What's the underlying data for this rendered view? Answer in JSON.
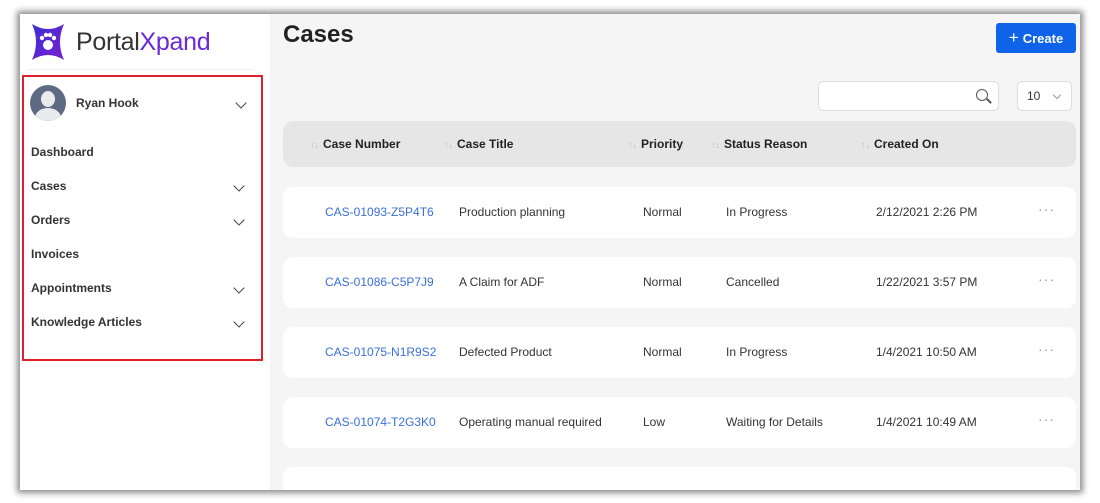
{
  "brand": {
    "name_part1": "Portal",
    "name_part2": "Xpand"
  },
  "user": {
    "name": "Ryan Hook"
  },
  "nav": [
    {
      "label": "Dashboard",
      "expandable": false
    },
    {
      "label": "Cases",
      "expandable": true
    },
    {
      "label": "Orders",
      "expandable": true
    },
    {
      "label": "Invoices",
      "expandable": false
    },
    {
      "label": "Appointments",
      "expandable": true
    },
    {
      "label": "Knowledge Articles",
      "expandable": true
    }
  ],
  "page": {
    "title": "Cases",
    "create_label": "Create",
    "search_placeholder": "",
    "page_size": "10"
  },
  "table": {
    "columns": [
      "Case Number",
      "Case Title",
      "Priority",
      "Status Reason",
      "Created On"
    ],
    "rows": [
      [
        "CAS-01093-Z5P4T6",
        "Production planning",
        "Normal",
        "In Progress",
        "2/12/2021 2:26 PM"
      ],
      [
        "CAS-01086-C5P7J9",
        "A Claim for ADF",
        "Normal",
        "Cancelled",
        "1/22/2021 3:57 PM"
      ],
      [
        "CAS-01075-N1R9S2",
        "Defected Product",
        "Normal",
        "In Progress",
        "1/4/2021 10:50 AM"
      ],
      [
        "CAS-01074-T2G3K0",
        "Operating manual required",
        "Low",
        "Waiting for Details",
        "1/4/2021 10:49 AM"
      ]
    ]
  },
  "colors": {
    "accent": "#0e63e8",
    "link": "#3a6fd8",
    "highlight": "#e0202a"
  }
}
